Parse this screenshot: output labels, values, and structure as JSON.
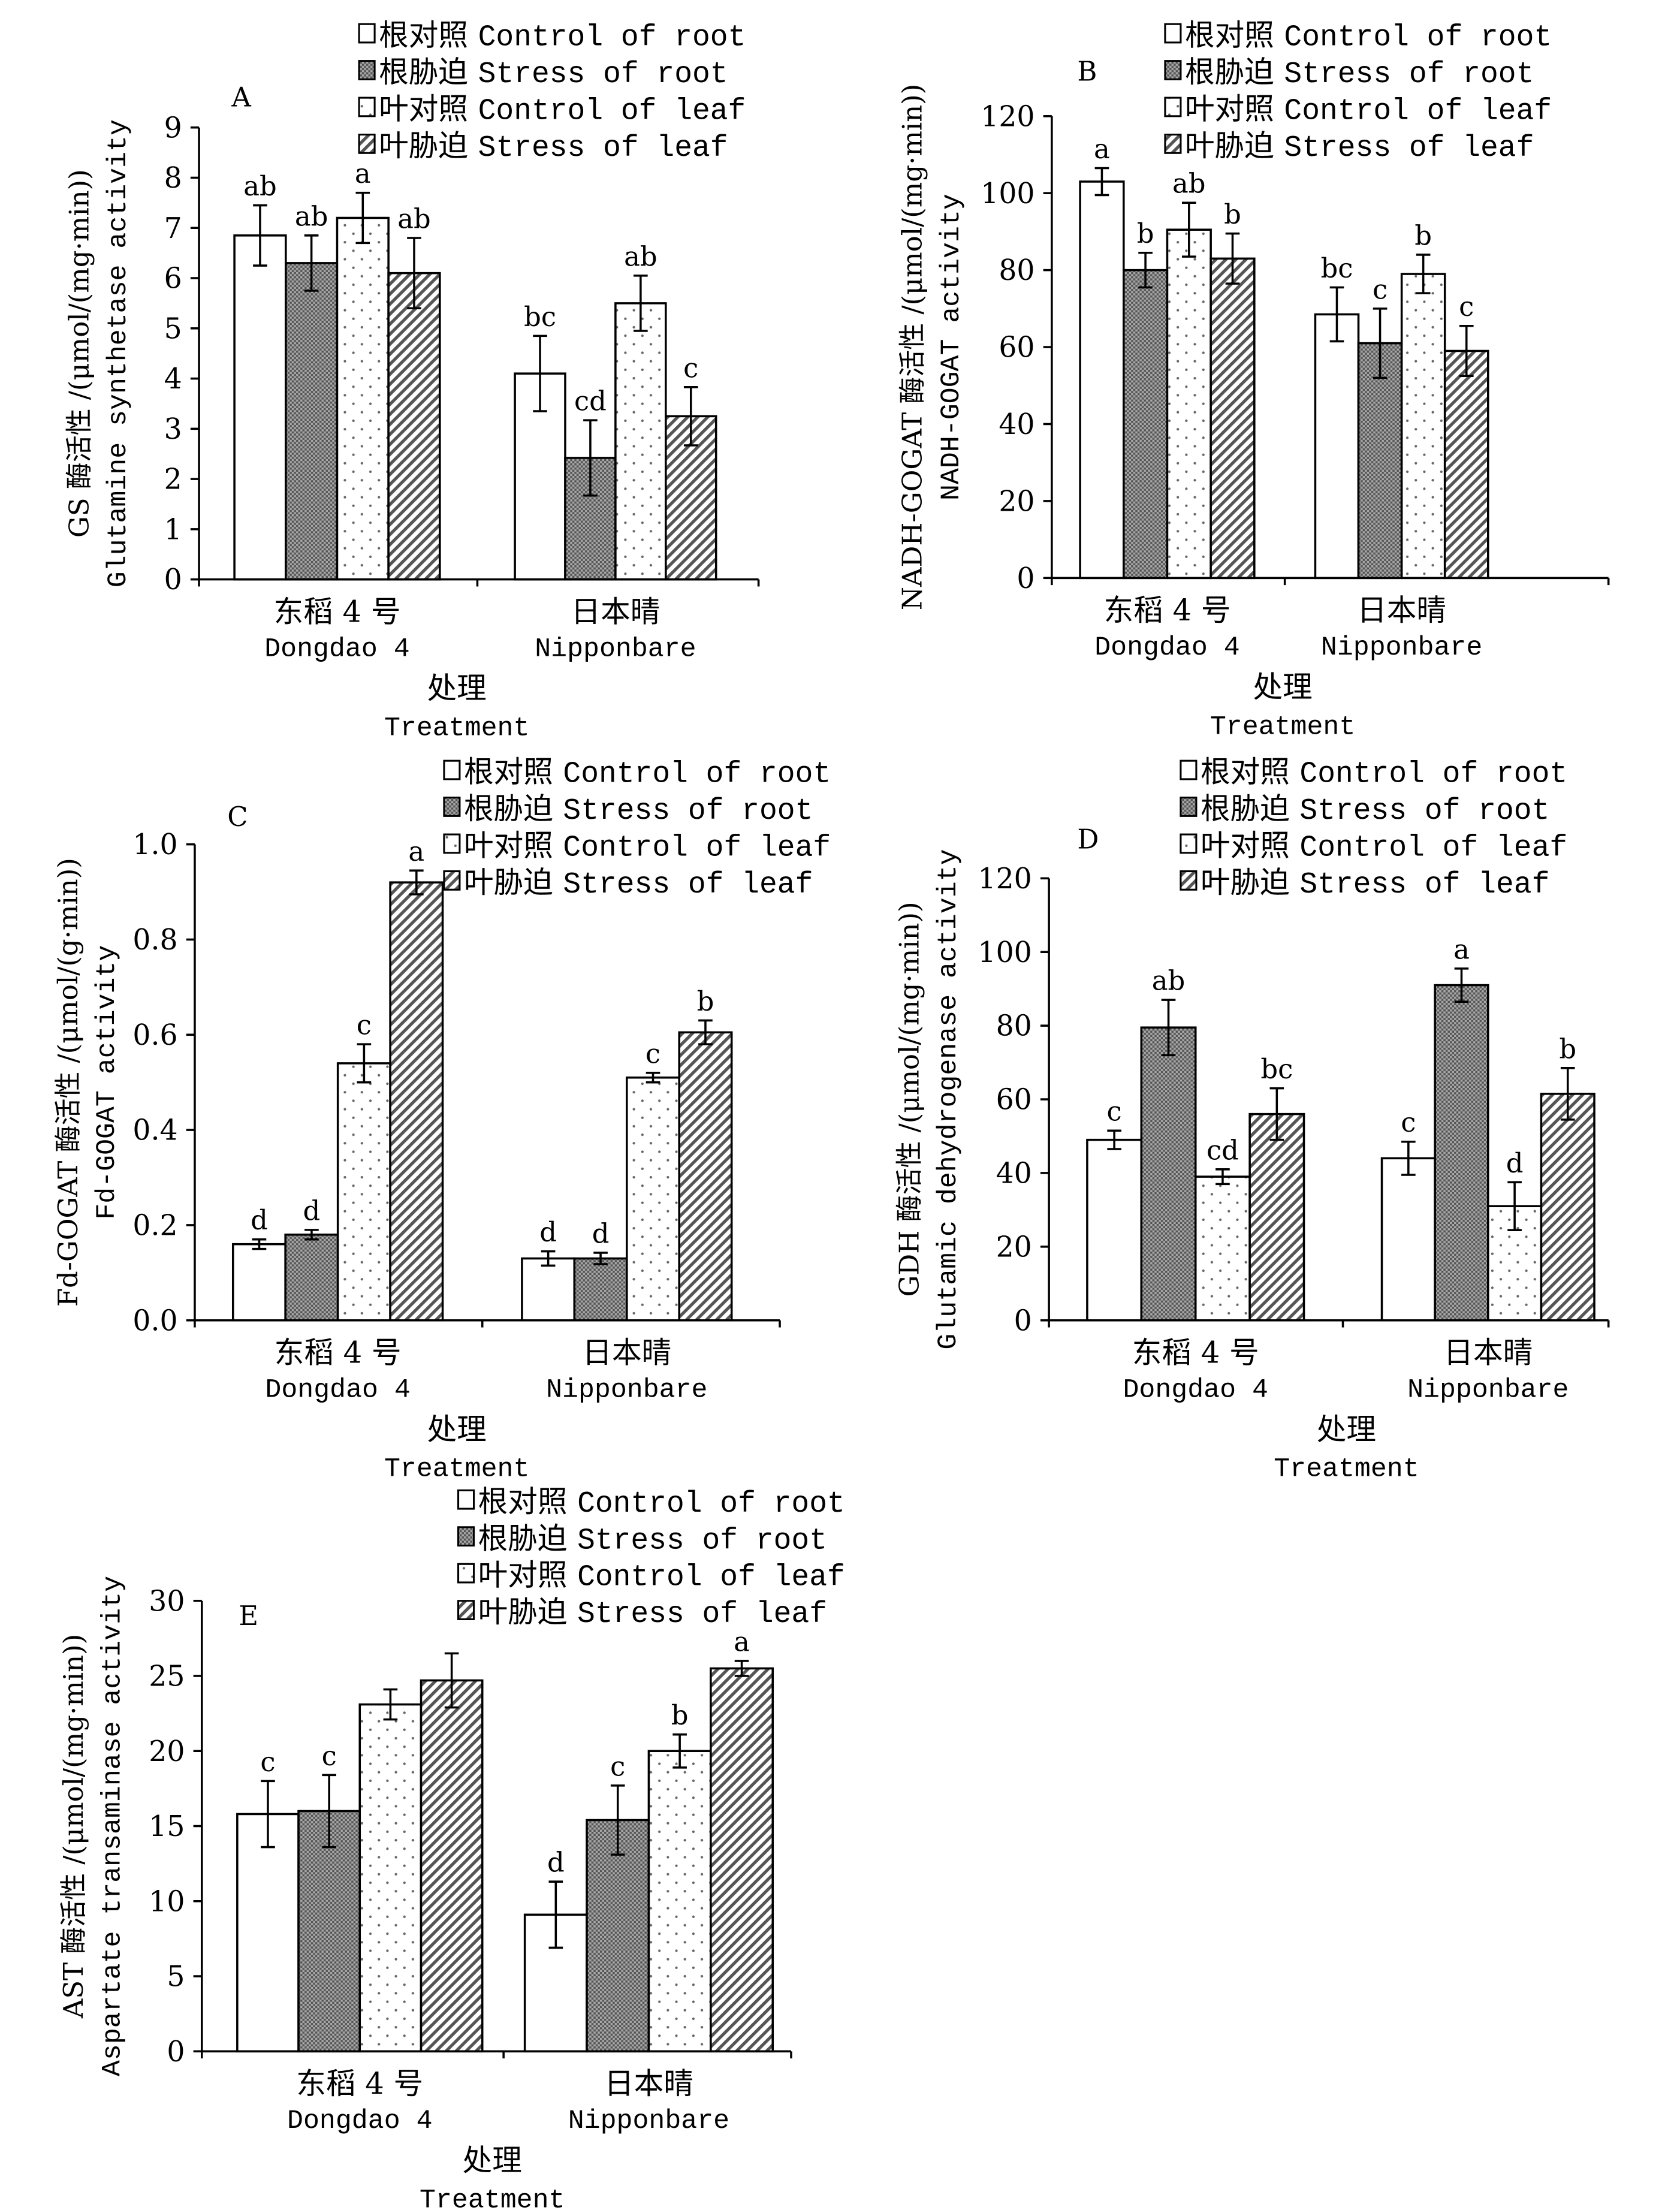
{
  "legend": [
    {
      "zh": "根对照",
      "en": "Control of root",
      "pattern": "white"
    },
    {
      "zh": "根胁迫",
      "en": "Stress of root",
      "pattern": "cross"
    },
    {
      "zh": "叶对照",
      "en": "Control of leaf",
      "pattern": "dots"
    },
    {
      "zh": "叶胁迫",
      "en": "Stress of leaf",
      "pattern": "stripes"
    }
  ],
  "colors": {
    "bar_stroke": "#000000",
    "cross_fill": "#8c8c8c",
    "background": "#ffffff"
  },
  "chart_data": [
    {
      "id": "A",
      "type": "bar",
      "title": "A",
      "ylabel_zh": "GS 酶活性 /(μmol/(mg·min))",
      "ylabel_en": "Glutamine synthetase activity",
      "xlabel_zh": "处理",
      "xlabel_en": "Treatment",
      "categories": [
        {
          "zh": "东稻 4 号",
          "en": "Dongdao 4"
        },
        {
          "zh": "日本晴",
          "en": "Nipponbare"
        }
      ],
      "ylim": [
        0,
        9
      ],
      "yticks": [
        0,
        1,
        2,
        3,
        4,
        5,
        6,
        7,
        8,
        9
      ],
      "tick_labels": [
        "0",
        "1",
        "2",
        "3",
        "4",
        "5",
        "6",
        "7",
        "8",
        "9"
      ],
      "series": [
        {
          "name": "Control of root",
          "values": [
            6.85,
            4.1
          ],
          "errors": [
            0.6,
            0.75
          ],
          "letters": [
            "ab",
            "bc"
          ]
        },
        {
          "name": "Stress of root",
          "values": [
            6.3,
            2.42
          ],
          "errors": [
            0.55,
            0.75
          ],
          "letters": [
            "ab",
            "cd"
          ]
        },
        {
          "name": "Control of leaf",
          "values": [
            7.2,
            5.5
          ],
          "errors": [
            0.5,
            0.55
          ],
          "letters": [
            "a",
            "ab"
          ]
        },
        {
          "name": "Stress of leaf",
          "values": [
            6.1,
            3.25
          ],
          "errors": [
            0.7,
            0.58
          ],
          "letters": [
            "ab",
            "c"
          ]
        }
      ]
    },
    {
      "id": "B",
      "type": "bar",
      "title": "B",
      "ylabel_zh": "NADH-GOGAT 酶活性 /(μmol/(mg·min))",
      "ylabel_en": "NADH-GOGAT activity",
      "xlabel_zh": "处理",
      "xlabel_en": "Treatment",
      "categories": [
        {
          "zh": "东稻 4 号",
          "en": "Dongdao 4"
        },
        {
          "zh": "日本晴",
          "en": "Nipponbare"
        }
      ],
      "ylim": [
        0,
        120
      ],
      "yticks": [
        0,
        20,
        40,
        60,
        80,
        100,
        120
      ],
      "tick_labels": [
        "0",
        "20",
        "40",
        "60",
        "80",
        "100",
        "120"
      ],
      "series": [
        {
          "name": "Control of root",
          "values": [
            103,
            68.5
          ],
          "errors": [
            3.5,
            7
          ],
          "letters": [
            "a",
            "bc"
          ]
        },
        {
          "name": "Stress of root",
          "values": [
            80,
            61
          ],
          "errors": [
            4.5,
            9
          ],
          "letters": [
            "b",
            "c"
          ]
        },
        {
          "name": "Control of leaf",
          "values": [
            90.5,
            79
          ],
          "errors": [
            7,
            5
          ],
          "letters": [
            "ab",
            "b"
          ]
        },
        {
          "name": "Stress of leaf",
          "values": [
            83,
            59
          ],
          "errors": [
            6.5,
            6.5
          ],
          "letters": [
            "b",
            "c"
          ]
        }
      ]
    },
    {
      "id": "C",
      "type": "bar",
      "title": "C",
      "ylabel_zh": "Fd-GOGAT 酶活性 /(μmol/(g·min))",
      "ylabel_en": "Fd-GOGAT activity",
      "xlabel_zh": "处理",
      "xlabel_en": "Treatment",
      "categories": [
        {
          "zh": "东稻 4 号",
          "en": "Dongdao 4"
        },
        {
          "zh": "日本晴",
          "en": "Nipponbare"
        }
      ],
      "ylim": [
        0,
        1.0
      ],
      "yticks": [
        0,
        0.2,
        0.4,
        0.6,
        0.8,
        1.0
      ],
      "tick_labels": [
        "0.0",
        "0.2",
        "0.4",
        "0.6",
        "0.8",
        "1.0"
      ],
      "series": [
        {
          "name": "Control of root",
          "values": [
            0.16,
            0.13
          ],
          "errors": [
            0.01,
            0.015
          ],
          "letters": [
            "d",
            "d"
          ]
        },
        {
          "name": "Stress of root",
          "values": [
            0.18,
            0.13
          ],
          "errors": [
            0.01,
            0.012
          ],
          "letters": [
            "d",
            "d"
          ]
        },
        {
          "name": "Control of leaf",
          "values": [
            0.54,
            0.51
          ],
          "errors": [
            0.04,
            0.01
          ],
          "letters": [
            "c",
            "c"
          ]
        },
        {
          "name": "Stress of leaf",
          "values": [
            0.92,
            0.605
          ],
          "errors": [
            0.025,
            0.025
          ],
          "letters": [
            "a",
            "b"
          ]
        }
      ]
    },
    {
      "id": "D",
      "type": "bar",
      "title": "D",
      "ylabel_zh": "GDH 酶活性 /(μmol/(mg·min))",
      "ylabel_en": "Glutamic dehydrogenase activity",
      "xlabel_zh": "处理",
      "xlabel_en": "Treatment",
      "categories": [
        {
          "zh": "东稻 4 号",
          "en": "Dongdao 4"
        },
        {
          "zh": "日本晴",
          "en": "Nipponbare"
        }
      ],
      "ylim": [
        0,
        120
      ],
      "yticks": [
        0,
        20,
        40,
        60,
        80,
        100,
        120
      ],
      "tick_labels": [
        "0",
        "20",
        "40",
        "60",
        "80",
        "100",
        "120"
      ],
      "series": [
        {
          "name": "Control of root",
          "values": [
            49,
            44
          ],
          "errors": [
            2.5,
            4.5
          ],
          "letters": [
            "c",
            "c"
          ]
        },
        {
          "name": "Stress of root",
          "values": [
            79.5,
            91
          ],
          "errors": [
            7.5,
            4.5
          ],
          "letters": [
            "ab",
            "a"
          ]
        },
        {
          "name": "Control of leaf",
          "values": [
            39,
            31
          ],
          "errors": [
            2,
            6.5
          ],
          "letters": [
            "cd",
            "d"
          ]
        },
        {
          "name": "Stress of leaf",
          "values": [
            56,
            61.5
          ],
          "errors": [
            7,
            7
          ],
          "letters": [
            "bc",
            "b"
          ]
        }
      ]
    },
    {
      "id": "E",
      "type": "bar",
      "title": "E",
      "ylabel_zh": "AST 酶活性 /(μmol/(mg·min))",
      "ylabel_en": "Aspartate transaminase activity",
      "xlabel_zh": "处理",
      "xlabel_en": "Treatment",
      "categories": [
        {
          "zh": "东稻 4 号",
          "en": "Dongdao 4"
        },
        {
          "zh": "日本晴",
          "en": "Nipponbare"
        }
      ],
      "ylim": [
        0,
        30
      ],
      "yticks": [
        0,
        5,
        10,
        15,
        20,
        25,
        30
      ],
      "tick_labels": [
        "0",
        "5",
        "10",
        "15",
        "20",
        "25",
        "30"
      ],
      "series": [
        {
          "name": "Control of root",
          "values": [
            15.8,
            9.1
          ],
          "errors": [
            2.2,
            2.2
          ],
          "letters": [
            "c",
            "d"
          ]
        },
        {
          "name": "Stress of root",
          "values": [
            16,
            15.4
          ],
          "errors": [
            2.4,
            2.3
          ],
          "letters": [
            "c",
            "c"
          ]
        },
        {
          "name": "Control of leaf",
          "values": [
            23.1,
            20
          ],
          "errors": [
            1.0,
            1.1
          ],
          "letters": [
            "",
            "b"
          ]
        },
        {
          "name": "Stress of leaf",
          "values": [
            24.7,
            25.5
          ],
          "errors": [
            1.8,
            0.5
          ],
          "letters": [
            "",
            "a"
          ]
        }
      ]
    }
  ]
}
